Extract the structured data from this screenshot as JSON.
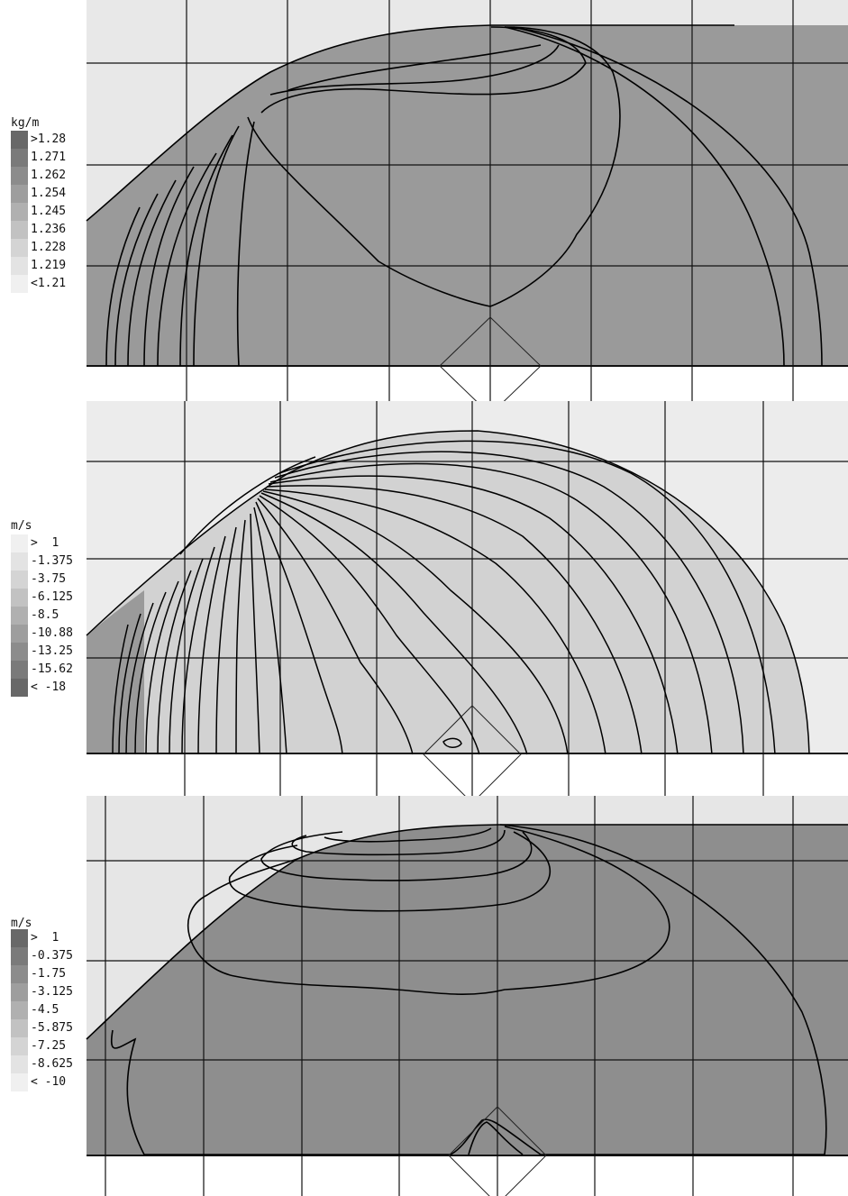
{
  "panels": [
    {
      "unit": "kg/m",
      "legend": [
        ">1.28",
        "1.271",
        "1.262",
        "1.254",
        "1.245",
        "1.236",
        "1.228",
        "1.219",
        "<1.21"
      ],
      "swatch_colors": [
        "#686868",
        "#7a7a7a",
        "#8c8c8c",
        "#9e9e9e",
        "#b0b0b0",
        "#c2c2c2",
        "#d4d4d4",
        "#e3e3e3",
        "#f0f0f0"
      ],
      "field_color": "#9a9a9a"
    },
    {
      "unit": "m/s",
      "legend": [
        ">  1",
        "-1.375",
        "-3.75",
        "-6.125",
        "-8.5",
        "-10.88",
        "-13.25",
        "-15.62",
        "< -18"
      ],
      "swatch_colors": [
        "#f0f0f0",
        "#e3e3e3",
        "#d4d4d4",
        "#c2c2c2",
        "#b0b0b0",
        "#9e9e9e",
        "#8c8c8c",
        "#7a7a7a",
        "#686868"
      ],
      "field_color": "#d2d2d2"
    },
    {
      "unit": "m/s",
      "legend": [
        ">  1",
        "-0.375",
        "-1.75",
        "-3.125",
        "-4.5",
        "-5.875",
        "-7.25",
        "-8.625",
        "< -10"
      ],
      "swatch_colors": [
        "#686868",
        "#7a7a7a",
        "#8c8c8c",
        "#9e9e9e",
        "#b0b0b0",
        "#c2c2c2",
        "#d4d4d4",
        "#e3e3e3",
        "#f0f0f0"
      ],
      "field_color": "#8e8e8e"
    }
  ]
}
